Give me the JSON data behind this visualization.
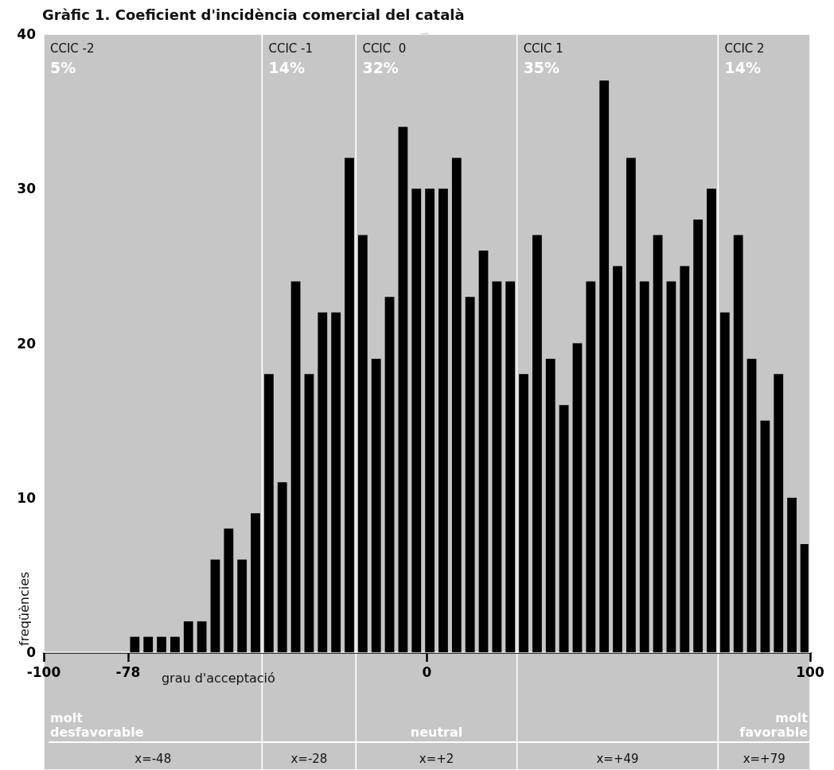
{
  "chart_data": {
    "type": "histogram",
    "title": "Gràfic 1. Coeficient d'incidència comercial del català",
    "xlabel": "grau d'acceptació",
    "ylabel": "freqüències",
    "bins": [
      -78,
      -74.5,
      -71,
      -67.5,
      -64,
      -60.5,
      -57,
      -53.5,
      -50,
      -46.5,
      -43,
      -39.5,
      -36,
      -32.5,
      -29,
      -25.5,
      -22,
      -18.5,
      -15,
      -11.5,
      -8,
      -4.5,
      -1,
      2.5,
      6,
      9.5,
      13,
      16.5,
      20,
      23.5,
      27,
      30.5,
      34,
      37.5,
      41,
      44.5,
      48,
      51.5,
      55,
      58.5,
      62,
      65.5,
      69,
      72.5,
      76,
      79.5,
      83,
      86.5,
      90,
      93.5,
      97,
      100
    ],
    "values": [
      1,
      1,
      1,
      1,
      2,
      2,
      6,
      8,
      6,
      9,
      18,
      11,
      24,
      18,
      22,
      22,
      32,
      27,
      19,
      23,
      34,
      30,
      30,
      30,
      32,
      23,
      26,
      24,
      24,
      18,
      27,
      19,
      16,
      20,
      24,
      37,
      25,
      32,
      24,
      27,
      24,
      25,
      28,
      30,
      22,
      27,
      19,
      15,
      18,
      10,
      7
    ],
    "color": "#000000",
    "xlim": [
      -100,
      100
    ],
    "xticks": [
      -100,
      -78,
      0,
      100
    ],
    "ylim": [
      0,
      40
    ],
    "yticks": [
      0,
      10,
      20,
      30,
      40
    ],
    "bands": [
      {
        "axis": "x",
        "from": -100,
        "to": -43,
        "label": "CCIC -2\n5%",
        "color": "#c6c6c6"
      },
      {
        "axis": "x",
        "from": -43,
        "to": -18.5,
        "label": "CCIC -1\n14%",
        "color": "#c6c6c6"
      },
      {
        "axis": "x",
        "from": -18.5,
        "to": 23.5,
        "label": "CCIC  0\n32%",
        "color": "#c6c6c6"
      },
      {
        "axis": "x",
        "from": 23.5,
        "to": 76,
        "label": "CCIC 1\n35%",
        "color": "#c6c6c6"
      },
      {
        "axis": "x",
        "from": 76,
        "to": 100,
        "label": "CCIC 2\n14%",
        "color": "#c6c6c6"
      }
    ],
    "annotations": [
      "molt\ndesfavorable",
      "neutral",
      "molt\nfavorable",
      "x=-48",
      "x=-28",
      "x=+2",
      "x=+49",
      "x=+79"
    ]
  }
}
